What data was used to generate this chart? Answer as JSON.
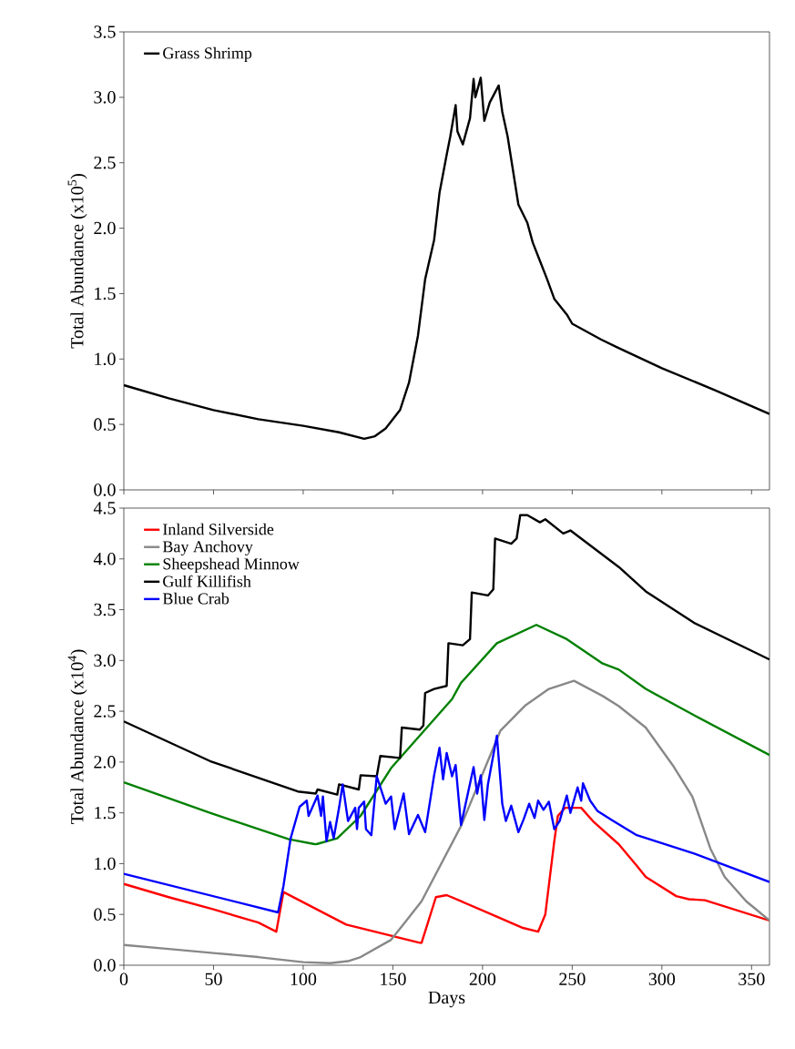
{
  "chart_data": [
    {
      "type": "line",
      "ylabel": "Total Abundance (x10$^{5}$)",
      "xlim": [
        0,
        360
      ],
      "ylim": [
        0,
        3.5
      ],
      "xticks": [
        0,
        50,
        100,
        150,
        200,
        250,
        300,
        350
      ],
      "yticks": [
        {
          "value": 0,
          "label": "0.0"
        },
        {
          "value": 0.5,
          "label": "0.5"
        },
        {
          "value": 1,
          "label": "1.0"
        },
        {
          "value": 1.5,
          "label": "1.5"
        },
        {
          "value": 2,
          "label": "2.0"
        },
        {
          "value": 2.5,
          "label": "2.5"
        },
        {
          "value": 3,
          "label": "3.0"
        },
        {
          "value": 3.5,
          "label": "3.5"
        }
      ],
      "tick_labels": "y",
      "legend": "top left",
      "series": [
        {
          "name": "Grass Shrimp",
          "color": "#000000",
          "x": [
            0,
            25,
            50,
            75,
            100,
            120,
            134,
            140,
            146,
            154,
            159,
            164,
            168,
            173,
            176,
            180,
            182,
            185,
            186,
            189,
            193,
            195,
            196,
            199,
            201,
            204,
            209,
            211,
            214,
            220,
            225,
            228,
            232,
            236,
            240,
            247,
            250,
            266,
            275,
            300,
            330,
            360
          ],
          "values": [
            0.8,
            0.7,
            0.61,
            0.54,
            0.49,
            0.44,
            0.39,
            0.41,
            0.47,
            0.61,
            0.82,
            1.18,
            1.61,
            1.91,
            2.27,
            2.56,
            2.7,
            2.94,
            2.74,
            2.64,
            2.84,
            3.14,
            3.0,
            3.15,
            2.82,
            2.96,
            3.09,
            2.89,
            2.7,
            2.18,
            2.04,
            1.89,
            1.75,
            1.61,
            1.46,
            1.34,
            1.27,
            1.15,
            1.09,
            0.93,
            0.76,
            0.58
          ]
        }
      ]
    },
    {
      "type": "line",
      "xlabel": "Days",
      "ylabel": "Total Abundance (x10$^{4}$)",
      "xlim": [
        0,
        360
      ],
      "ylim": [
        0,
        4.5
      ],
      "xticks": [
        0,
        50,
        100,
        150,
        200,
        250,
        300,
        350
      ],
      "yticks": [
        {
          "value": 0,
          "label": "0.0"
        },
        {
          "value": 0.5,
          "label": "0.5"
        },
        {
          "value": 1,
          "label": "1.0"
        },
        {
          "value": 1.5,
          "label": "1.5"
        },
        {
          "value": 2,
          "label": "2.0"
        },
        {
          "value": 2.5,
          "label": "2.5"
        },
        {
          "value": 3,
          "label": "3.0"
        },
        {
          "value": 3.5,
          "label": "3.5"
        },
        {
          "value": 4,
          "label": "4.0"
        },
        {
          "value": 4.5,
          "label": "4.5"
        }
      ],
      "legend": "top left",
      "series": [
        {
          "name": "Inland Silverside",
          "color": "#ff0000",
          "x": [
            0,
            25,
            50,
            75,
            85,
            89,
            124,
            165,
            166,
            174,
            180,
            188,
            205,
            222,
            231,
            235,
            240,
            242,
            246,
            255,
            262,
            276,
            286,
            291,
            308,
            315,
            324,
            360
          ],
          "values": [
            0.8,
            0.67,
            0.55,
            0.42,
            0.33,
            0.72,
            0.4,
            0.22,
            0.22,
            0.67,
            0.69,
            0.63,
            0.5,
            0.37,
            0.33,
            0.5,
            1.22,
            1.47,
            1.55,
            1.55,
            1.41,
            1.19,
            0.98,
            0.87,
            0.68,
            0.65,
            0.64,
            0.44
          ]
        },
        {
          "name": "Bay Anchovy",
          "color": "#888888",
          "x": [
            0,
            25,
            50,
            75,
            100,
            115,
            125,
            132,
            149,
            154,
            166,
            188,
            210,
            224,
            237,
            251,
            267,
            276,
            291,
            306,
            317,
            327,
            335,
            347,
            360
          ],
          "values": [
            0.2,
            0.16,
            0.12,
            0.08,
            0.03,
            0.02,
            0.04,
            0.08,
            0.25,
            0.36,
            0.63,
            1.37,
            2.31,
            2.56,
            2.72,
            2.8,
            2.65,
            2.55,
            2.34,
            1.97,
            1.66,
            1.15,
            0.87,
            0.63,
            0.44
          ]
        },
        {
          "name": "Sheepshead Minnow",
          "color": "#008000",
          "x": [
            0,
            48,
            92,
            107,
            119,
            132,
            149,
            166,
            183,
            188,
            208,
            230,
            247,
            267,
            276,
            291,
            318,
            360
          ],
          "values": [
            1.8,
            1.5,
            1.24,
            1.19,
            1.25,
            1.47,
            1.94,
            2.28,
            2.62,
            2.78,
            3.17,
            3.35,
            3.21,
            2.97,
            2.91,
            2.72,
            2.46,
            2.07
          ]
        },
        {
          "name": "Gulf Killifish",
          "color": "#000000",
          "x": [
            0,
            48,
            97,
            107,
            108,
            119,
            120,
            131,
            132,
            141,
            143,
            154,
            155,
            165,
            167,
            168,
            173,
            180,
            181,
            189,
            193,
            194,
            203,
            206,
            207,
            216,
            219,
            221,
            225,
            232,
            235,
            245,
            249,
            276,
            291,
            318,
            360
          ],
          "values": [
            2.4,
            2.01,
            1.71,
            1.69,
            1.73,
            1.68,
            1.78,
            1.73,
            1.87,
            1.86,
            2.06,
            2.04,
            2.34,
            2.32,
            2.36,
            2.68,
            2.72,
            2.75,
            3.17,
            3.15,
            3.21,
            3.67,
            3.64,
            3.7,
            4.2,
            4.15,
            4.2,
            4.43,
            4.43,
            4.36,
            4.39,
            4.25,
            4.28,
            3.92,
            3.68,
            3.37,
            3.01
          ]
        },
        {
          "name": "Blue Crab",
          "color": "#0000ff",
          "x": [
            0,
            86,
            89,
            93,
            98,
            102,
            103,
            108,
            110,
            111,
            113,
            115,
            117,
            120,
            122,
            125,
            129,
            130,
            131,
            134,
            135,
            138,
            141,
            146,
            149,
            151,
            156,
            159,
            164,
            168,
            173,
            176,
            178,
            180,
            183,
            185,
            188,
            195,
            197,
            199,
            201,
            203,
            208,
            211,
            213,
            216,
            220,
            223,
            226,
            229,
            231,
            234,
            237,
            240,
            243,
            247,
            249,
            253,
            255,
            256,
            260,
            264,
            272,
            286,
            318,
            360
          ],
          "values": [
            0.9,
            0.52,
            0.78,
            1.25,
            1.56,
            1.62,
            1.47,
            1.67,
            1.47,
            1.66,
            1.22,
            1.41,
            1.25,
            1.55,
            1.78,
            1.42,
            1.55,
            1.34,
            1.55,
            1.61,
            1.34,
            1.28,
            1.86,
            1.59,
            1.66,
            1.34,
            1.69,
            1.29,
            1.48,
            1.31,
            1.87,
            2.14,
            1.83,
            2.09,
            1.86,
            1.97,
            1.38,
            1.95,
            1.69,
            1.87,
            1.43,
            1.78,
            2.26,
            1.59,
            1.42,
            1.57,
            1.31,
            1.44,
            1.59,
            1.45,
            1.62,
            1.53,
            1.61,
            1.34,
            1.42,
            1.67,
            1.5,
            1.75,
            1.62,
            1.79,
            1.62,
            1.52,
            1.43,
            1.28,
            1.1,
            0.82
          ]
        }
      ]
    }
  ]
}
